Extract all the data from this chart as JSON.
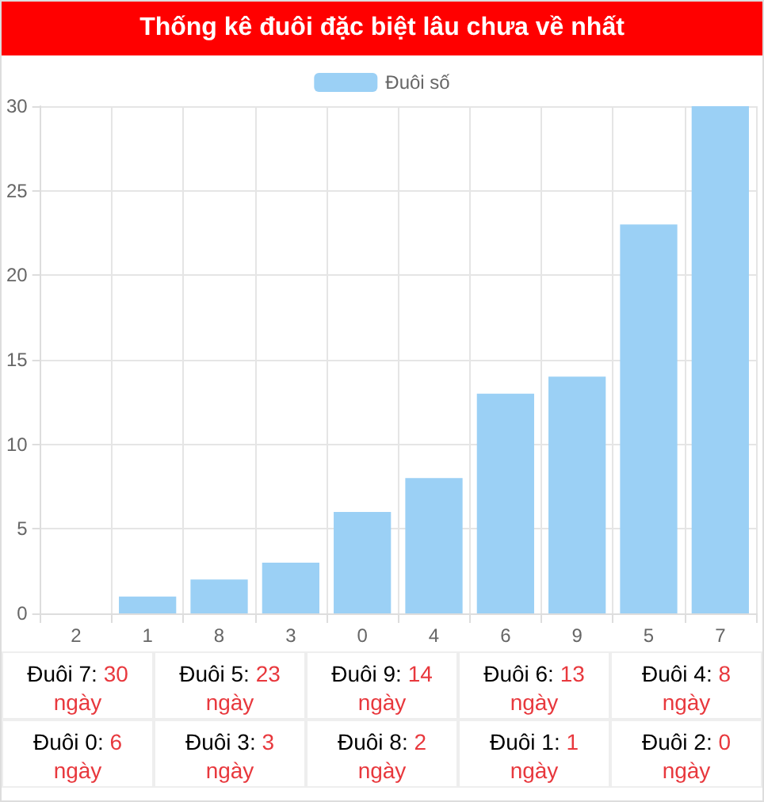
{
  "chart_data": {
    "type": "bar",
    "title": "Thống kê đuôi đặc biệt lâu chưa về nhất",
    "categories": [
      "2",
      "1",
      "8",
      "3",
      "0",
      "4",
      "6",
      "9",
      "5",
      "7"
    ],
    "series": [
      {
        "name": "Đuôi số",
        "color": "#9bd0f5",
        "values": [
          0,
          1,
          2,
          3,
          6,
          8,
          13,
          14,
          23,
          30
        ]
      }
    ],
    "ylim": [
      0,
      30
    ],
    "yticks": [
      0,
      5,
      10,
      15,
      20,
      25,
      30
    ],
    "grid": true,
    "legend": "top",
    "annotations": [
      "Đuôi 7: 30 ngày",
      "Đuôi 5: 23 ngày",
      "Đuôi 9: 14 ngày",
      "Đuôi 6: 13 ngày",
      "Đuôi 4: 8 ngày",
      "Đuôi 0: 6 ngày",
      "Đuôi 3: 3 ngày",
      "Đuôi 8: 2 ngày",
      "Đuôi 1: 1 ngày",
      "Đuôi 2: 0 ngày"
    ]
  }
}
